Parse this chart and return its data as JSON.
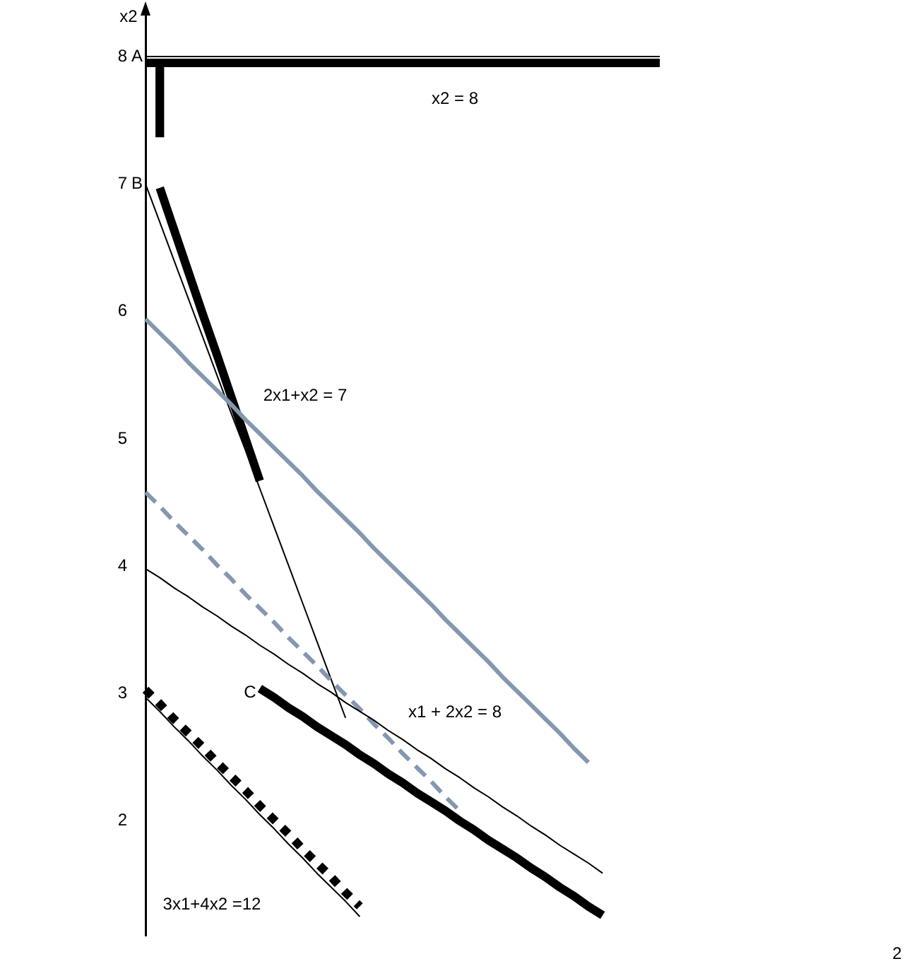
{
  "chart_data": {
    "type": "line",
    "ylabel": "x2",
    "categories": [
      null,
      null,
      null,
      null,
      null,
      null,
      null,
      null,
      null,
      null,
      null,
      null,
      null,
      null,
      null,
      null,
      null,
      null,
      null,
      null,
      null,
      null,
      null,
      null,
      null,
      null,
      null,
      null,
      null,
      null,
      null,
      null,
      null,
      null,
      null,
      null,
      null
    ],
    "ylim": [
      1.1,
      8.4
    ],
    "yticks": [
      2,
      3,
      4,
      5,
      6,
      7,
      8
    ],
    "tick_labels": "y",
    "marker": "none",
    "series": [
      {
        "color": "#000000",
        "values": [
          8,
          8,
          8,
          8,
          8,
          8,
          8,
          8,
          8,
          8,
          8,
          8,
          8,
          8,
          8,
          8,
          8,
          8,
          8,
          8,
          8,
          8,
          8,
          8,
          8,
          8,
          8,
          8,
          8,
          8,
          8,
          8,
          8,
          8,
          8,
          8,
          8
        ]
      },
      {
        "color": "#000000",
        "values": [
          7.95,
          7.95,
          7.95,
          7.95,
          7.95,
          7.95,
          7.95,
          7.95,
          7.95,
          7.95,
          7.95,
          7.95,
          7.95,
          7.95,
          7.95,
          7.95,
          7.95,
          7.95,
          7.95,
          7.95,
          7.95,
          7.95,
          7.95,
          7.95,
          7.95,
          7.95,
          7.95,
          7.95,
          7.95,
          7.95,
          7.95,
          7.95,
          7.95,
          7.95,
          7.95,
          7.95,
          7.95
        ]
      },
      {
        "type": "bar",
        "color": "#000000",
        "values": [
          null,
          0.58,
          null,
          null,
          null,
          null,
          null,
          null,
          null,
          null,
          null,
          null,
          null,
          null,
          null,
          null,
          null,
          null,
          null,
          null,
          null,
          null,
          null,
          null,
          null,
          null,
          null,
          null,
          null,
          null,
          null,
          null,
          null,
          null,
          null,
          null,
          null
        ],
        "base": [
          null,
          7.37,
          null,
          null,
          null,
          null,
          null,
          null,
          null,
          null,
          null,
          null,
          null,
          null,
          null,
          null,
          null,
          null,
          null,
          null,
          null,
          null,
          null,
          null,
          null,
          null,
          null,
          null,
          null,
          null,
          null,
          null,
          null,
          null,
          null,
          null,
          null
        ]
      },
      {
        "color": "#000000",
        "values": [
          7.0,
          6.7,
          6.4,
          6.1,
          5.8,
          5.5,
          5.2,
          4.91,
          4.61,
          4.31,
          4.01,
          3.71,
          3.41,
          3.11,
          2.81,
          null,
          null,
          null,
          null,
          null,
          null,
          null,
          null,
          null,
          null,
          null,
          null,
          null,
          null,
          null,
          null,
          null,
          null,
          null,
          null,
          null,
          null
        ]
      },
      {
        "color": "#000000",
        "values": [
          null,
          6.97,
          6.64,
          6.31,
          5.98,
          5.66,
          5.33,
          5.0,
          4.67,
          null,
          null,
          null,
          null,
          null,
          null,
          null,
          null,
          null,
          null,
          null,
          null,
          null,
          null,
          null,
          null,
          null,
          null,
          null,
          null,
          null,
          null,
          null,
          null,
          null,
          null,
          null,
          null
        ]
      },
      {
        "color": "#8497b0",
        "values": [
          5.94,
          5.83,
          5.72,
          5.6,
          5.49,
          5.38,
          5.27,
          5.15,
          5.04,
          4.93,
          4.82,
          4.71,
          4.59,
          4.48,
          4.37,
          4.26,
          4.14,
          4.03,
          3.92,
          3.81,
          3.7,
          3.58,
          3.47,
          3.36,
          3.25,
          3.13,
          3.02,
          2.91,
          2.8,
          2.69,
          2.57,
          2.46,
          null,
          null,
          null,
          null,
          null
        ]
      },
      {
        "color": "#8497b0",
        "line_style": "dashed",
        "values": [
          4.58,
          4.47,
          4.35,
          4.24,
          4.13,
          4.01,
          3.9,
          3.78,
          3.67,
          3.56,
          3.44,
          3.33,
          3.22,
          3.1,
          2.99,
          2.88,
          2.76,
          2.65,
          2.53,
          2.42,
          2.31,
          2.19,
          2.08,
          null,
          null,
          null,
          null,
          null,
          null,
          null,
          null,
          null,
          null,
          null,
          null,
          null,
          null
        ]
      },
      {
        "color": "#000000",
        "values": [
          3.98,
          3.91,
          3.83,
          3.76,
          3.68,
          3.61,
          3.53,
          3.46,
          3.38,
          3.31,
          3.23,
          3.16,
          3.08,
          3.01,
          2.93,
          2.86,
          2.79,
          2.71,
          2.64,
          2.56,
          2.49,
          2.41,
          2.34,
          2.26,
          2.19,
          2.11,
          2.04,
          1.96,
          1.89,
          1.81,
          1.74,
          1.67,
          1.59,
          null,
          null,
          null,
          null
        ]
      },
      {
        "color": "#000000",
        "values": [
          null,
          null,
          null,
          null,
          null,
          null,
          null,
          null,
          3.04,
          2.97,
          2.89,
          2.82,
          2.74,
          2.67,
          2.6,
          2.52,
          2.45,
          2.37,
          2.3,
          2.22,
          2.15,
          2.08,
          2.0,
          1.93,
          1.85,
          1.78,
          1.71,
          1.63,
          1.56,
          1.48,
          1.41,
          1.33,
          1.26,
          null,
          null,
          null,
          null
        ]
      },
      {
        "color": "#000000",
        "values": [
          2.97,
          2.86,
          2.74,
          2.63,
          2.51,
          2.4,
          2.28,
          2.17,
          2.05,
          1.94,
          1.82,
          1.71,
          1.59,
          1.48,
          1.37,
          1.25,
          null,
          null,
          null,
          null,
          null,
          null,
          null,
          null,
          null,
          null,
          null,
          null,
          null,
          null,
          null,
          null,
          null,
          null,
          null,
          null,
          null
        ]
      },
      {
        "color": "#000000",
        "line_style": "dotted",
        "values": [
          3.03,
          2.92,
          2.8,
          2.69,
          2.58,
          2.46,
          2.35,
          2.24,
          2.12,
          2.01,
          1.9,
          1.78,
          1.67,
          1.56,
          1.44,
          1.33,
          null,
          null,
          null,
          null,
          null,
          null,
          null,
          null,
          null,
          null,
          null,
          null,
          null,
          null,
          null,
          null,
          null,
          null,
          null,
          null,
          null
        ]
      }
    ],
    "annotations": [
      "A",
      "B",
      "C",
      "x2 = 8",
      "2x1+x2 = 7",
      "x1 + 2x2 = 8",
      "3x1+4x2 =12",
      "2"
    ]
  }
}
